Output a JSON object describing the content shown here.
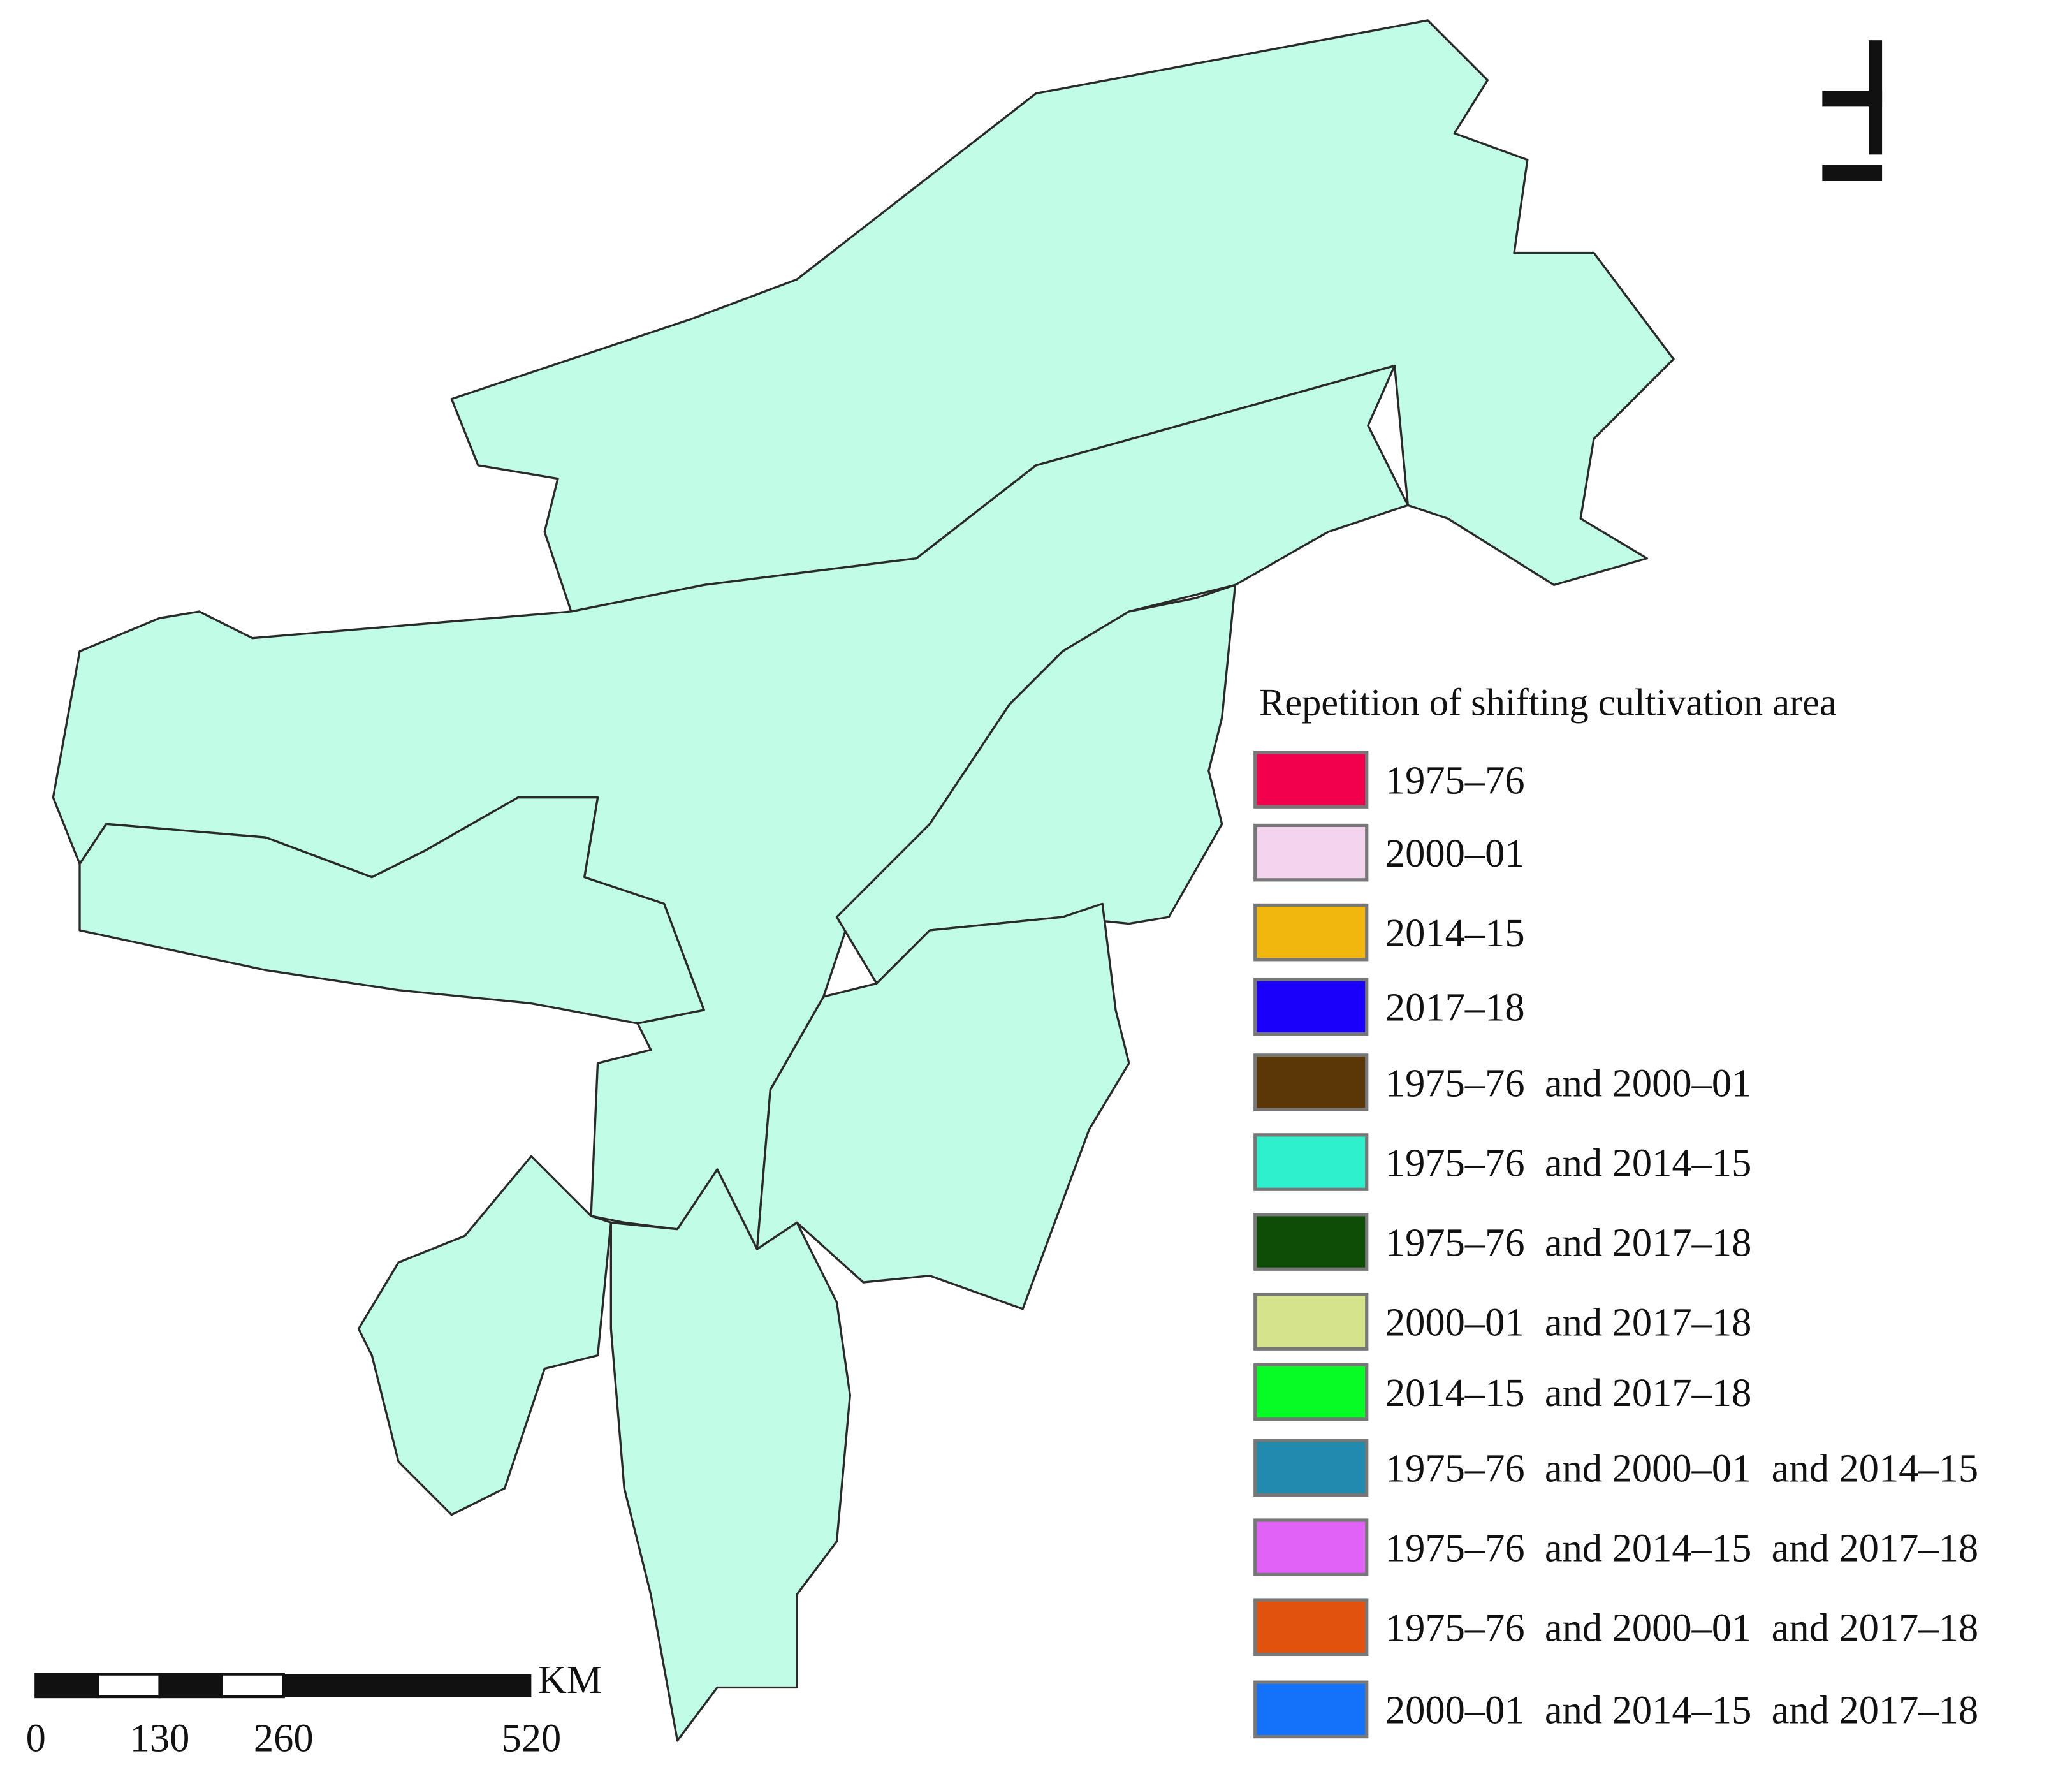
{
  "legend": {
    "title": "Repetition of shifting cultivation area",
    "items": [
      {
        "label": "1975–76",
        "color": "#f2004e"
      },
      {
        "label": "2000–01",
        "color": "#f4d3ee"
      },
      {
        "label": "2014–15",
        "color": "#f2b70f"
      },
      {
        "label": "2017–18",
        "color": "#1a00fb"
      },
      {
        "label": "1975–76  and 2000–01",
        "color": "#5b3708"
      },
      {
        "label": "1975–76  and 2014–15",
        "color": "#2ff0cc"
      },
      {
        "label": "1975–76  and 2017–18",
        "color": "#0d4d05"
      },
      {
        "label": "2000–01  and 2017–18",
        "color": "#d5e48c"
      },
      {
        "label": "2014–15  and 2017–18",
        "color": "#07fb25"
      },
      {
        "label": "1975–76  and 2000–01  and 2014–15",
        "color": "#228aae"
      },
      {
        "label": "1975–76  and 2014–15  and 2017–18",
        "color": "#e062f6"
      },
      {
        "label": "1975–76  and 2000–01  and 2017–18",
        "color": "#e2520f"
      },
      {
        "label": "2000–01  and 2014–15  and 2017–18",
        "color": "#1472fa"
      }
    ]
  },
  "scale_bar": {
    "unit": "KM",
    "labels": [
      0,
      130,
      260,
      520
    ]
  }
}
